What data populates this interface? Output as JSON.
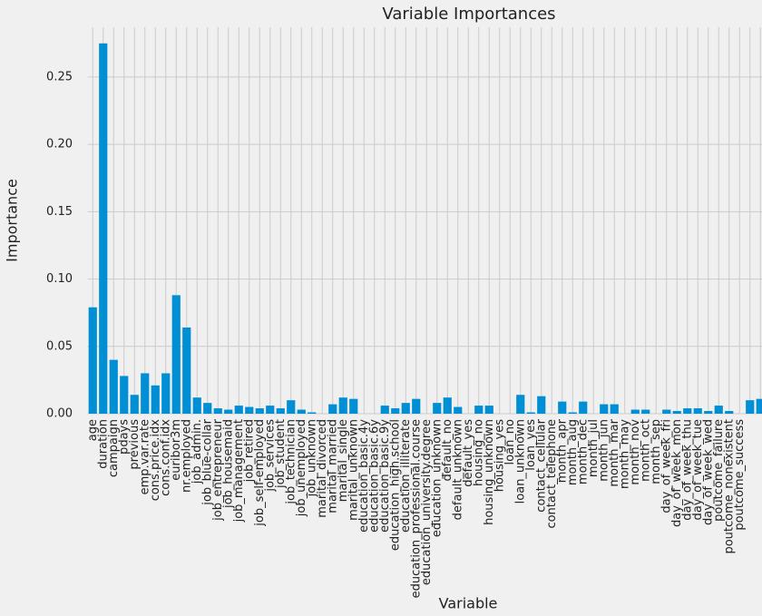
{
  "chart_data": {
    "type": "bar",
    "title": "Variable Importances",
    "xlabel": "Variable",
    "ylabel": "Importance",
    "categories": [
      "age",
      "duration",
      "campaign",
      "pdays",
      "previous",
      "emp.var.rate",
      "cons.price.idx",
      "cons.conf.idx",
      "euribor3m",
      "nr.employed",
      "job_admin.",
      "job_blue-collar",
      "job_entrepreneur",
      "job_housemaid",
      "job_management",
      "job_retired",
      "job_self-employed",
      "job_services",
      "job_student",
      "job_technician",
      "job_unemployed",
      "job_unknown",
      "marital_divorced",
      "marital_married",
      "marital_single",
      "marital_unknown",
      "education_basic.4y",
      "education_basic.6y",
      "education_basic.9y",
      "education_high.school",
      "education_illiterate",
      "education_professional.course",
      "education_university.degree",
      "education_unknown",
      "default_no",
      "default_unknown",
      "default_yes",
      "housing_no",
      "housing_unknown",
      "housing_yes",
      "loan_no",
      "loan_unknown",
      "loan_yes",
      "contact_cellular",
      "contact_telephone",
      "month_apr",
      "month_aug",
      "month_dec",
      "month_jul",
      "month_jun",
      "month_mar",
      "month_may",
      "month_nov",
      "month_oct",
      "month_sep",
      "day_of_week_fri",
      "day_of_week_mon",
      "day_of_week_thu",
      "day_of_week_tue",
      "day_of_week_wed",
      "poutcome_failure",
      "poutcome_nonexistent",
      "poutcome_success",
      null,
      null
    ],
    "values": [
      0.079,
      0.275,
      0.04,
      0.028,
      0.014,
      0.03,
      0.021,
      0.03,
      0.088,
      0.064,
      0.012,
      0.008,
      0.004,
      0.003,
      0.006,
      0.005,
      0.004,
      0.006,
      0.004,
      0.01,
      0.003,
      0.001,
      0,
      0.007,
      0.012,
      0.011,
      0,
      0,
      0.006,
      0.004,
      0.008,
      0.011,
      0,
      0.008,
      0.012,
      0.005,
      0,
      0.006,
      0.006,
      0,
      0,
      0.014,
      0.001,
      0.013,
      0,
      0.009,
      0.001,
      0.009,
      0,
      0.007,
      0.007,
      0,
      0.003,
      0.003,
      0,
      0.003,
      0.002,
      0.004,
      0.004,
      0.002,
      0.006,
      0.002,
      0,
      0.01,
      0.011
    ],
    "color": "#008fd5",
    "ylim": [
      0,
      0.287
    ],
    "yticks": [
      {
        "value": 0,
        "label": "0.00"
      },
      0.05,
      {
        "value": 0.1,
        "label": "0.10"
      },
      0.15,
      {
        "value": 0.2,
        "label": "0.20"
      },
      0.25
    ],
    "grid": true
  }
}
